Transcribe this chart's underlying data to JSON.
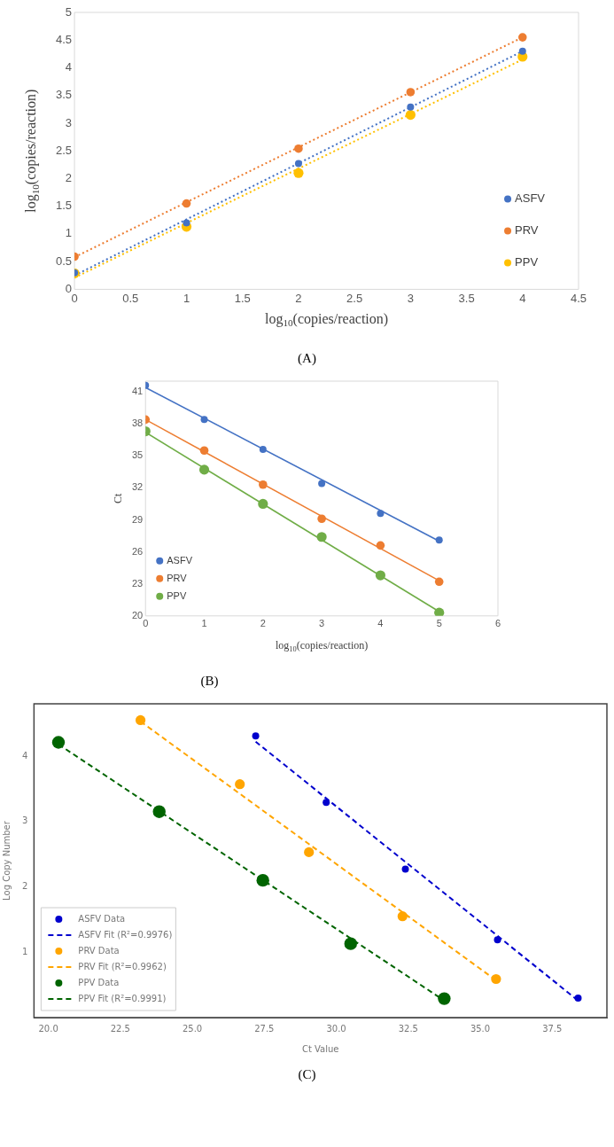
{
  "chart_data": [
    {
      "type": "scatter",
      "xlabel": "log$_{10}$(copies/reaction)",
      "ylabel": "log$_{10}$(copies/reaction)",
      "annotations": [
        "(A)"
      ],
      "legend": "bottom right",
      "xlim": [
        0,
        4.5
      ],
      "ylim": [
        0,
        5
      ],
      "xticks": [
        0,
        0.5,
        1,
        1.5,
        2,
        2.5,
        3,
        3.5,
        4,
        4.5
      ],
      "yticks": [
        0,
        0.5,
        1,
        1.5,
        2,
        2.5,
        3,
        3.5,
        4,
        4.5,
        5
      ],
      "series": [
        {
          "name": "ASFV",
          "type": "scatter",
          "marker": "circle",
          "color": "#4472c4",
          "x": [
            0,
            1,
            2,
            3,
            4
          ],
          "values": [
            0.3,
            1.2,
            2.27,
            3.29,
            4.3
          ]
        },
        {
          "name": "PRV",
          "type": "scatter",
          "marker": "circle",
          "color": "#ed7d31",
          "x": [
            0,
            1,
            2,
            3,
            4
          ],
          "values": [
            0.59,
            1.55,
            2.54,
            3.56,
            4.55
          ]
        },
        {
          "name": "PPV",
          "type": "scatter",
          "marker": "circle",
          "color": "#ffc000",
          "x": [
            0,
            1,
            2,
            3,
            4
          ],
          "values": [
            0.29,
            1.13,
            2.1,
            3.15,
            4.2
          ]
        },
        {
          "type": "line",
          "color": "#4472c4",
          "line_style": "dotted",
          "x": [
            0,
            4
          ],
          "values": [
            0.25,
            4.3
          ]
        },
        {
          "type": "line",
          "color": "#ed7d31",
          "line_style": "dotted",
          "x": [
            0,
            4
          ],
          "values": [
            0.58,
            4.55
          ]
        },
        {
          "type": "line",
          "color": "#ffc000",
          "line_style": "dotted",
          "x": [
            0,
            4
          ],
          "values": [
            0.21,
            4.15
          ]
        }
      ]
    },
    {
      "type": "scatter",
      "xlabel": "log$_{10}$(copies/reaction)",
      "ylabel": "Ct",
      "annotations": [
        "(B)"
      ],
      "legend": "bottom left",
      "xlim": [
        0,
        6
      ],
      "ylim": [
        20,
        42
      ],
      "xticks": [
        0,
        1,
        2,
        3,
        4,
        5,
        6
      ],
      "yticks": [
        20,
        23,
        26,
        29,
        32,
        35,
        38,
        41
      ],
      "series": [
        {
          "name": "ASFV",
          "type": "scatter",
          "marker": "circle",
          "color": "#4472c4",
          "x": [
            0,
            1,
            2,
            3,
            4,
            5
          ],
          "values": [
            41.6,
            38.4,
            35.6,
            32.4,
            29.6,
            27.1
          ]
        },
        {
          "name": "PRV",
          "type": "scatter",
          "marker": "circle",
          "color": "#ed7d31",
          "x": [
            0,
            1,
            2,
            3,
            4,
            5
          ],
          "values": [
            38.4,
            35.5,
            32.3,
            29.1,
            26.6,
            23.2
          ]
        },
        {
          "name": "PPV",
          "type": "scatter",
          "marker": "circle",
          "color": "#70ad47",
          "x": [
            0,
            1,
            2,
            3,
            4,
            5
          ],
          "values": [
            37.3,
            33.7,
            30.5,
            27.4,
            23.8,
            20.3
          ]
        },
        {
          "type": "line",
          "color": "#4472c4",
          "line_style": "solid",
          "x": [
            0,
            5
          ],
          "values": [
            41.4,
            27.0
          ]
        },
        {
          "type": "line",
          "color": "#ed7d31",
          "line_style": "solid",
          "x": [
            0,
            5
          ],
          "values": [
            38.4,
            23.3
          ]
        },
        {
          "type": "line",
          "color": "#70ad47",
          "line_style": "solid",
          "x": [
            0,
            5
          ],
          "values": [
            37.2,
            20.4
          ]
        }
      ]
    },
    {
      "type": "scatter",
      "xlabel": "Ct Value",
      "ylabel": "Log Copy Number",
      "annotations": [
        "(C)"
      ],
      "legend": "bottom left",
      "xlim": [
        19.5,
        39.4
      ],
      "ylim": [
        0,
        4.8
      ],
      "xticks": [
        {
          "value": 20,
          "label": "20.0"
        },
        {
          "value": 22.5,
          "label": "22.5"
        },
        {
          "value": 25,
          "label": "25.0"
        },
        {
          "value": 27.5,
          "label": "27.5"
        },
        {
          "value": 30,
          "label": "30.0"
        },
        {
          "value": 32.5,
          "label": "32.5"
        },
        {
          "value": 35,
          "label": "35.0"
        },
        {
          "value": 37.5,
          "label": "37.5"
        }
      ],
      "yticks": [
        1,
        2,
        3,
        4
      ],
      "series": [
        {
          "name": "ASFV Data",
          "type": "scatter",
          "marker": "circle",
          "color": "#0000cd",
          "x": [
            27.2,
            29.65,
            32.4,
            35.6,
            38.4
          ],
          "values": [
            4.31,
            3.29,
            2.27,
            1.19,
            0.3
          ]
        },
        {
          "name": "ASFV Fit (R²=0.9976)",
          "type": "line",
          "color": "#0000cd",
          "line_style": "dashed",
          "x": [
            27.2,
            38.4
          ],
          "values": [
            4.22,
            0.26
          ]
        },
        {
          "name": "PRV Data",
          "type": "scatter",
          "marker": "circle",
          "color": "#ffa500",
          "x": [
            23.2,
            26.65,
            29.05,
            32.3,
            35.55
          ],
          "values": [
            4.55,
            3.57,
            2.53,
            1.55,
            0.59
          ]
        },
        {
          "name": "PRV Fit (R²=0.9962)",
          "type": "line",
          "color": "#ffa500",
          "line_style": "dashed",
          "x": [
            23.2,
            35.55
          ],
          "values": [
            4.53,
            0.57
          ]
        },
        {
          "name": "PPV Data",
          "type": "scatter",
          "marker": "circle",
          "color": "#006400",
          "x": [
            20.35,
            23.85,
            27.45,
            30.5,
            33.75
          ],
          "values": [
            4.21,
            3.15,
            2.1,
            1.13,
            0.29
          ]
        },
        {
          "name": "PPV Fit (R²=0.9991)",
          "type": "line",
          "color": "#006400",
          "line_style": "dashed",
          "x": [
            20.35,
            33.75
          ],
          "values": [
            4.18,
            0.26
          ]
        }
      ]
    }
  ]
}
